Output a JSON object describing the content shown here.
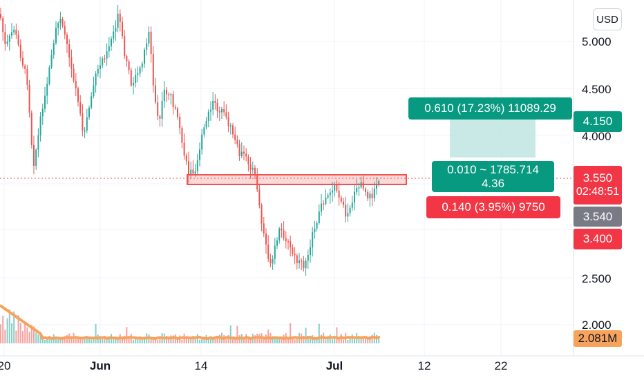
{
  "currency_button": "USD",
  "chart_data": {
    "type": "candlestick",
    "x_ticks": [
      "20",
      "Jun",
      "14",
      "Jul",
      "12",
      "22"
    ],
    "y_ticks": [
      "5.000",
      "4.500",
      "4.000",
      "2.500",
      "2.000"
    ],
    "price_tags": {
      "target": "4.150",
      "current": "3.550",
      "countdown": "02:48:51",
      "entry": "3.540",
      "stop": "3.400",
      "volume": "2.081M"
    },
    "position_tool": {
      "profit_label": "0.610 (17.23%) 11089.29",
      "middle_label_line1": "0.010 ~ 1785.714",
      "middle_label_line2": "4.36",
      "loss_label": "0.140 (3.95%) 9750"
    },
    "colors": {
      "up": "#26a69a",
      "down": "#ef5350",
      "profit_zone": "#b2dfdb",
      "target_tag": "#089981",
      "stop_tag": "#f23645",
      "entry_tag": "#787b86",
      "volume_ma": "#f7a35c",
      "resistance_box": "#ef5350"
    },
    "price_line_value": 3.55,
    "resistance_zone": [
      3.52,
      3.58
    ]
  }
}
